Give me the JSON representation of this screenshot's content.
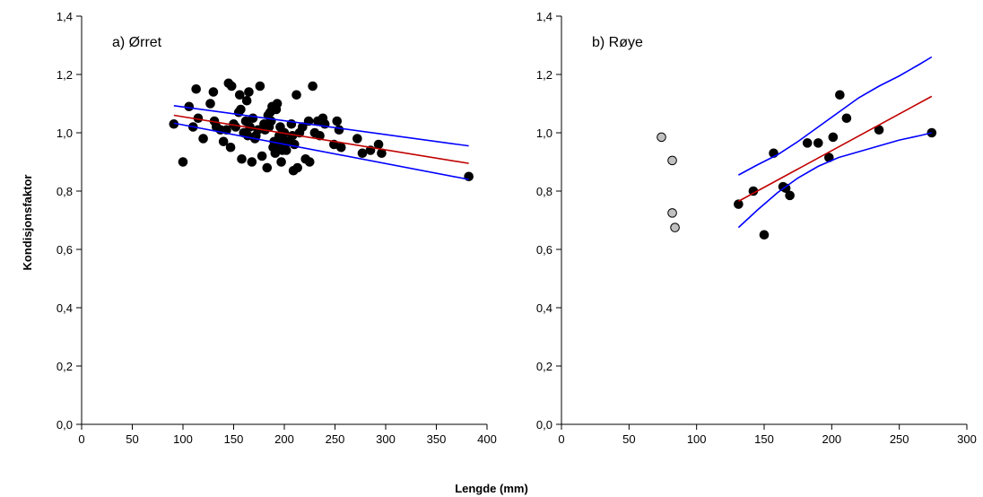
{
  "figure": {
    "ylabel": "Kondisjonsfaktor",
    "xlabel": "Lengde (mm)"
  },
  "chart_data": [
    {
      "type": "scatter",
      "title": "a) Ørret",
      "xlim": [
        0,
        400
      ],
      "ylim": [
        0.0,
        1.4
      ],
      "xticks": [
        "0",
        "50",
        "100",
        "150",
        "200",
        "250",
        "300",
        "350",
        "400"
      ],
      "yticks": [
        "0,0",
        "0,2",
        "0,4",
        "0,6",
        "0,8",
        "1,0",
        "1,2",
        "1,4"
      ],
      "grid": false,
      "series": [
        {
          "marker_color": "#000000",
          "points": [
            [
              91,
              1.03
            ],
            [
              100,
              0.9
            ],
            [
              106,
              1.09
            ],
            [
              110,
              1.02
            ],
            [
              113,
              1.15
            ],
            [
              115,
              1.05
            ],
            [
              120,
              0.98
            ],
            [
              127,
              1.1
            ],
            [
              130,
              1.14
            ],
            [
              131,
              1.04
            ],
            [
              133,
              1.02
            ],
            [
              137,
              1.01
            ],
            [
              140,
              0.97
            ],
            [
              143,
              1.01
            ],
            [
              145,
              1.17
            ],
            [
              147,
              0.95
            ],
            [
              148,
              1.16
            ],
            [
              150,
              1.03
            ],
            [
              152,
              1.02
            ],
            [
              155,
              1.07
            ],
            [
              156,
              1.13
            ],
            [
              157,
              1.08
            ],
            [
              158,
              0.91
            ],
            [
              160,
              1.0
            ],
            [
              162,
              1.04
            ],
            [
              163,
              1.11
            ],
            [
              164,
              0.99
            ],
            [
              165,
              1.14
            ],
            [
              166,
              1.02
            ],
            [
              168,
              0.9
            ],
            [
              169,
              1.05
            ],
            [
              171,
              0.98
            ],
            [
              172,
              0.99
            ],
            [
              174,
              1.01
            ],
            [
              176,
              1.16
            ],
            [
              178,
              0.92
            ],
            [
              180,
              1.03
            ],
            [
              181,
              1.01
            ],
            [
              183,
              0.88
            ],
            [
              184,
              1.06
            ],
            [
              185,
              1.02
            ],
            [
              186,
              1.07
            ],
            [
              187,
              1.04
            ],
            [
              188,
              1.09
            ],
            [
              189,
              0.95
            ],
            [
              190,
              0.97
            ],
            [
              191,
              0.93
            ],
            [
              192,
              1.08
            ],
            [
              193,
              1.1
            ],
            [
              194,
              0.96
            ],
            [
              195,
              0.99
            ],
            [
              196,
              1.02
            ],
            [
              197,
              0.9
            ],
            [
              198,
              0.94
            ],
            [
              199,
              0.98
            ],
            [
              200,
              1.0
            ],
            [
              201,
              0.96
            ],
            [
              202,
              0.94
            ],
            [
              204,
              0.97
            ],
            [
              207,
              1.03
            ],
            [
              208,
              0.99
            ],
            [
              209,
              0.87
            ],
            [
              210,
              0.96
            ],
            [
              212,
              1.13
            ],
            [
              213,
              0.88
            ],
            [
              215,
              1.0
            ],
            [
              218,
              1.02
            ],
            [
              221,
              0.91
            ],
            [
              224,
              1.04
            ],
            [
              225,
              0.9
            ],
            [
              228,
              1.16
            ],
            [
              230,
              1.0
            ],
            [
              233,
              1.04
            ],
            [
              235,
              0.99
            ],
            [
              238,
              1.05
            ],
            [
              240,
              1.03
            ],
            [
              249,
              0.96
            ],
            [
              252,
              1.04
            ],
            [
              254,
              1.01
            ],
            [
              256,
              0.95
            ],
            [
              272,
              0.98
            ],
            [
              277,
              0.93
            ],
            [
              285,
              0.94
            ],
            [
              293,
              0.96
            ],
            [
              296,
              0.93
            ],
            [
              382,
              0.85
            ]
          ]
        }
      ],
      "regression_line": {
        "color": "#c00000",
        "x": [
          91,
          382
        ],
        "y": [
          1.06,
          0.895
        ]
      },
      "confidence_upper": {
        "color": "#0000ff",
        "x": [
          91,
          382
        ],
        "y": [
          1.093,
          0.955
        ]
      },
      "confidence_lower": {
        "color": "#0000ff",
        "x": [
          91,
          382
        ],
        "y": [
          1.033,
          0.84
        ]
      }
    },
    {
      "type": "scatter",
      "title": "b) Røye",
      "xlim": [
        0,
        300
      ],
      "ylim": [
        0.0,
        1.4
      ],
      "xticks": [
        "0",
        "50",
        "100",
        "150",
        "200",
        "250",
        "300"
      ],
      "yticks": [
        "0,0",
        "0,2",
        "0,4",
        "0,6",
        "0,8",
        "1,0",
        "1,2",
        "1,4"
      ],
      "grid": false,
      "series": [
        {
          "marker_color": "#000000",
          "points": [
            [
              131,
              0.755
            ],
            [
              142,
              0.8
            ],
            [
              150,
              0.65
            ],
            [
              157,
              0.93
            ],
            [
              164,
              0.815
            ],
            [
              166,
              0.81
            ],
            [
              169,
              0.785
            ],
            [
              182,
              0.965
            ],
            [
              190,
              0.965
            ],
            [
              198,
              0.915
            ],
            [
              201,
              0.985
            ],
            [
              206,
              1.13
            ],
            [
              211,
              1.05
            ],
            [
              235,
              1.01
            ],
            [
              274,
              1.0
            ]
          ]
        },
        {
          "marker_color": "#c0c0c0",
          "points": [
            [
              74,
              0.985
            ],
            [
              82,
              0.905
            ],
            [
              82,
              0.725
            ],
            [
              84,
              0.675
            ]
          ]
        }
      ],
      "regression_line": {
        "color": "#c00000",
        "x": [
          131,
          274
        ],
        "y": [
          0.765,
          1.125
        ]
      },
      "confidence_upper": {
        "color": "#0000ff",
        "x": [
          131,
          145,
          160,
          175,
          190,
          205,
          220,
          235,
          250,
          265,
          274
        ],
        "y": [
          0.855,
          0.89,
          0.925,
          0.97,
          1.02,
          1.07,
          1.12,
          1.16,
          1.195,
          1.235,
          1.26
        ]
      },
      "confidence_lower": {
        "color": "#0000ff",
        "x": [
          131,
          145,
          160,
          175,
          190,
          205,
          220,
          235,
          250,
          265,
          274
        ],
        "y": [
          0.675,
          0.735,
          0.795,
          0.845,
          0.885,
          0.915,
          0.935,
          0.955,
          0.975,
          0.99,
          1.0
        ]
      }
    }
  ]
}
